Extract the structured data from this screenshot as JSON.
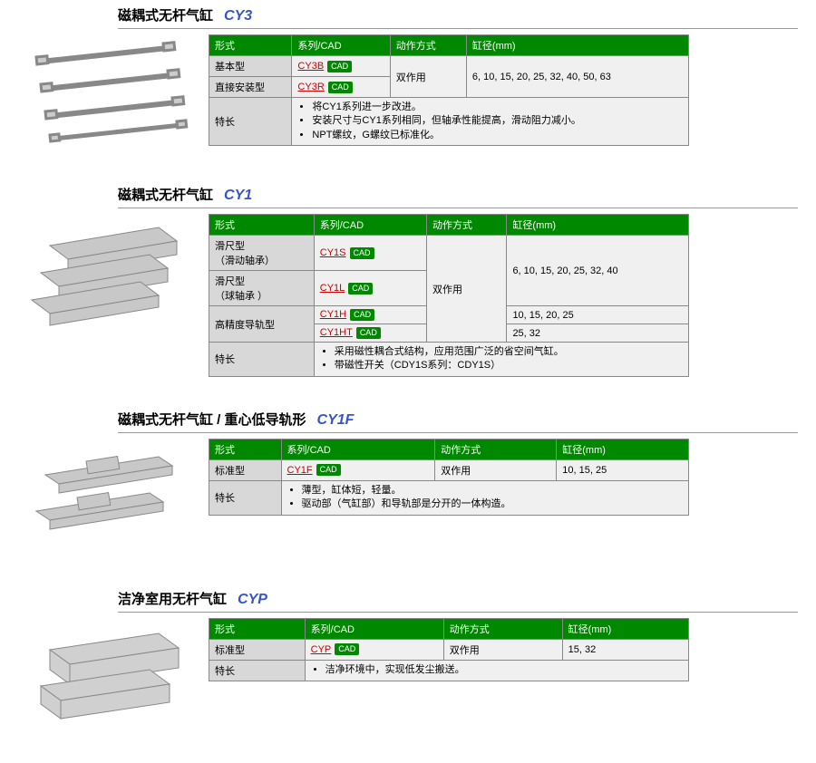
{
  "header_cols": [
    "形式",
    "系列/CAD",
    "动作方式",
    "缸径(mm)"
  ],
  "cad_label": "CAD",
  "feature_label": "特长",
  "sections": [
    {
      "title_cn": "磁耦式无杆气缸",
      "title_en": "CY3",
      "rows": [
        {
          "form": "基本型",
          "series": "CY3B",
          "action": "双作用",
          "bore": "6, 10, 15, 20, 25, 32, 40, 50, 63",
          "action_rowspan": 2,
          "bore_rowspan": 2
        },
        {
          "form": "直接安装型",
          "series": "CY3R"
        }
      ],
      "features": [
        "将CY1系列进一步改进。",
        "安装尺寸与CY1系列相同，但轴承性能提高，滑动阻力减小。",
        "NPT螺纹，G螺纹已标准化。"
      ]
    },
    {
      "title_cn": "磁耦式无杆气缸",
      "title_en": "CY1",
      "rows": [
        {
          "form": "滑尺型\n（滑动轴承）",
          "series": "CY1S",
          "action": "双作用",
          "bore": "6, 10, 15, 20, 25, 32, 40",
          "action_rowspan": 4,
          "bore_rowspan": 2
        },
        {
          "form": "滑尺型\n（球轴承 ）",
          "series": "CY1L"
        },
        {
          "form": "高精度导轨型",
          "series": "CY1H",
          "bore": "10, 15, 20, 25",
          "form_rowspan": 2
        },
        {
          "series": "CY1HT",
          "bore": "25, 32"
        }
      ],
      "features": [
        "采用磁性耦合式结构，应用范围广泛的省空间气缸。",
        "带磁性开关（CDY1S系列：CDY1S）"
      ]
    },
    {
      "title_cn": "磁耦式无杆气缸  / 重心低导轨形",
      "title_en": "CY1F",
      "rows": [
        {
          "form": "标准型",
          "series": "CY1F",
          "action": "双作用",
          "bore": "10, 15, 25"
        }
      ],
      "features": [
        "薄型，缸体短，轻量。",
        "驱动部（气缸部）和导轨部是分开的一体构造。"
      ]
    },
    {
      "title_cn": "洁净室用无杆气缸",
      "title_en": "CYP",
      "rows": [
        {
          "form": "标准型",
          "series": "CYP",
          "action": "双作用",
          "bore": "15, 32"
        }
      ],
      "features": [
        "洁净环境中，实现低发尘搬送。"
      ]
    }
  ]
}
